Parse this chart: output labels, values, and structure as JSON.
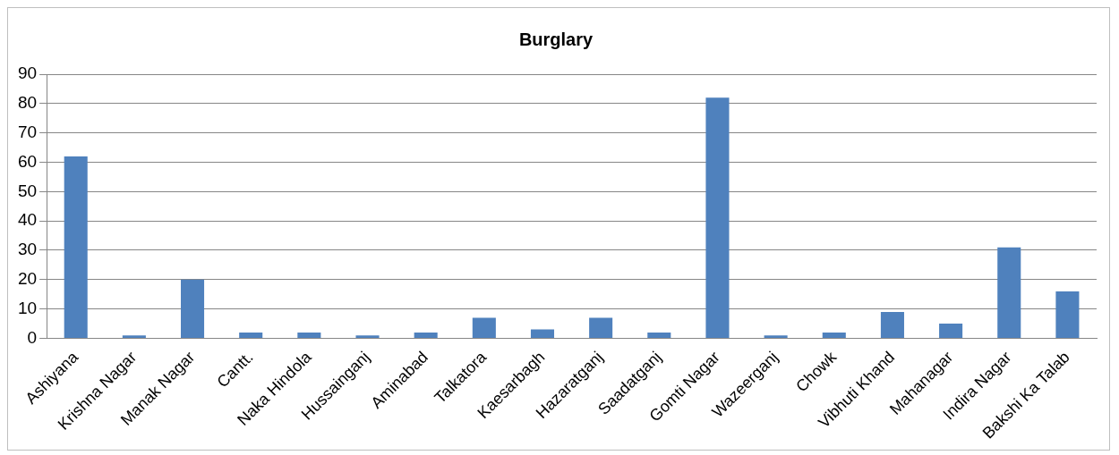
{
  "chart_data": {
    "type": "bar",
    "title": "Burglary",
    "categories": [
      "Ashiyana",
      "Krishna Nagar",
      "Manak Nagar",
      "Cantt.",
      "Naka Hindola",
      "Hussainganj",
      "Aminabad",
      "Talkatora",
      "Kaesarbagh",
      "Hazaratganj",
      "Saadatganj",
      "Gomti Nagar",
      "Wazeerganj",
      "Chowk",
      "Vibhuti Khand",
      "Mahanagar",
      "Indira Nagar",
      "Bakshi Ka Talab"
    ],
    "values": [
      62,
      1,
      20,
      2,
      2,
      1,
      2,
      7,
      3,
      7,
      2,
      82,
      1,
      2,
      9,
      5,
      31,
      16
    ],
    "color": "#4f81bd",
    "ylim": [
      0,
      90
    ],
    "yticks": [
      0,
      10,
      20,
      30,
      40,
      50,
      60,
      70,
      80,
      90
    ],
    "grid": "y"
  }
}
